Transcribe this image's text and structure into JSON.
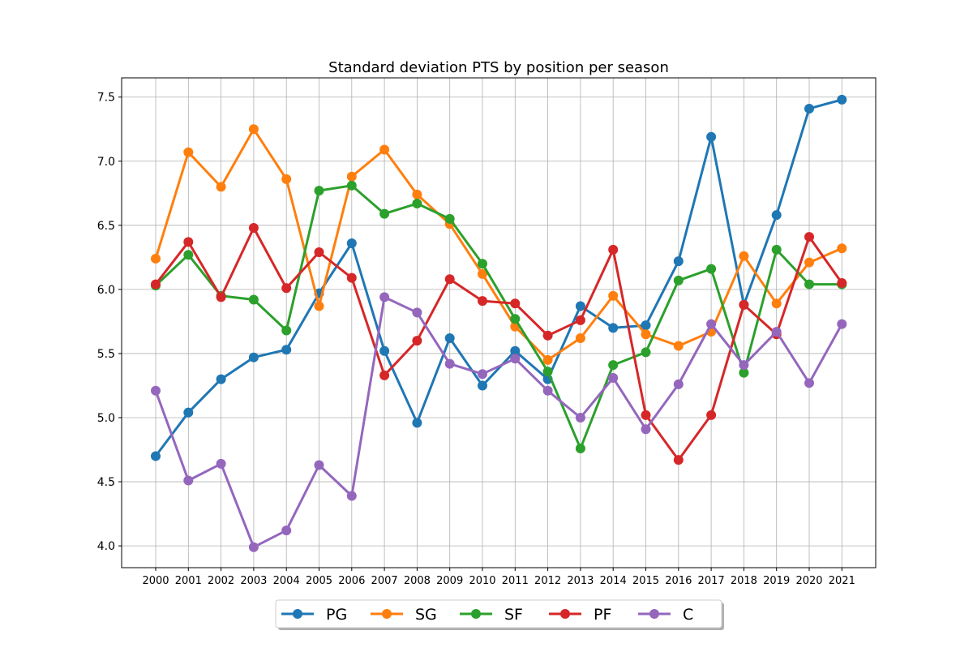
{
  "chart_data": {
    "type": "line",
    "title": "Standard deviation PTS by position per season",
    "xlabel": "",
    "ylabel": "",
    "x": [
      "2000",
      "2001",
      "2002",
      "2003",
      "2004",
      "2005",
      "2006",
      "2007",
      "2008",
      "2009",
      "2010",
      "2011",
      "2012",
      "2013",
      "2014",
      "2015",
      "2016",
      "2017",
      "2018",
      "2019",
      "2020",
      "2021"
    ],
    "ylim": [
      3.83,
      7.65
    ],
    "yticks": [
      "4.0",
      "4.5",
      "5.0",
      "5.5",
      "6.0",
      "6.5",
      "7.0",
      "7.5"
    ],
    "grid": true,
    "legend_position": "bottom-center, below plot",
    "series": [
      {
        "name": "PG",
        "color": "#1f77b4",
        "values": [
          4.7,
          5.04,
          5.3,
          5.47,
          5.53,
          5.97,
          6.36,
          5.52,
          4.96,
          5.62,
          5.25,
          5.52,
          5.3,
          5.87,
          5.7,
          5.72,
          6.22,
          7.19,
          5.88,
          6.58,
          7.41,
          7.48
        ]
      },
      {
        "name": "SG",
        "color": "#ff7f0e",
        "values": [
          6.24,
          7.07,
          6.8,
          7.25,
          6.86,
          5.87,
          6.88,
          7.09,
          6.74,
          6.51,
          6.12,
          5.71,
          5.45,
          5.62,
          5.95,
          5.65,
          5.56,
          5.67,
          6.26,
          5.89,
          6.21,
          6.32
        ]
      },
      {
        "name": "SF",
        "color": "#2ca02c",
        "values": [
          6.03,
          6.27,
          5.95,
          5.92,
          5.68,
          6.77,
          6.81,
          6.59,
          6.67,
          6.55,
          6.2,
          5.77,
          5.36,
          4.76,
          5.41,
          5.51,
          6.07,
          6.16,
          5.35,
          6.31,
          6.04,
          6.04
        ]
      },
      {
        "name": "PF",
        "color": "#d62728",
        "values": [
          6.04,
          6.37,
          5.94,
          6.48,
          6.01,
          6.29,
          6.09,
          5.33,
          5.6,
          6.08,
          5.91,
          5.89,
          5.64,
          5.76,
          6.31,
          5.02,
          4.67,
          5.02,
          5.88,
          5.65,
          6.41,
          6.05
        ]
      },
      {
        "name": "C",
        "color": "#9467bd",
        "values": [
          5.21,
          4.51,
          4.64,
          3.99,
          4.12,
          4.63,
          4.39,
          5.94,
          5.82,
          5.42,
          5.34,
          5.46,
          5.21,
          5.0,
          5.31,
          4.91,
          5.26,
          5.73,
          5.41,
          5.67,
          5.27,
          5.73
        ]
      }
    ]
  }
}
